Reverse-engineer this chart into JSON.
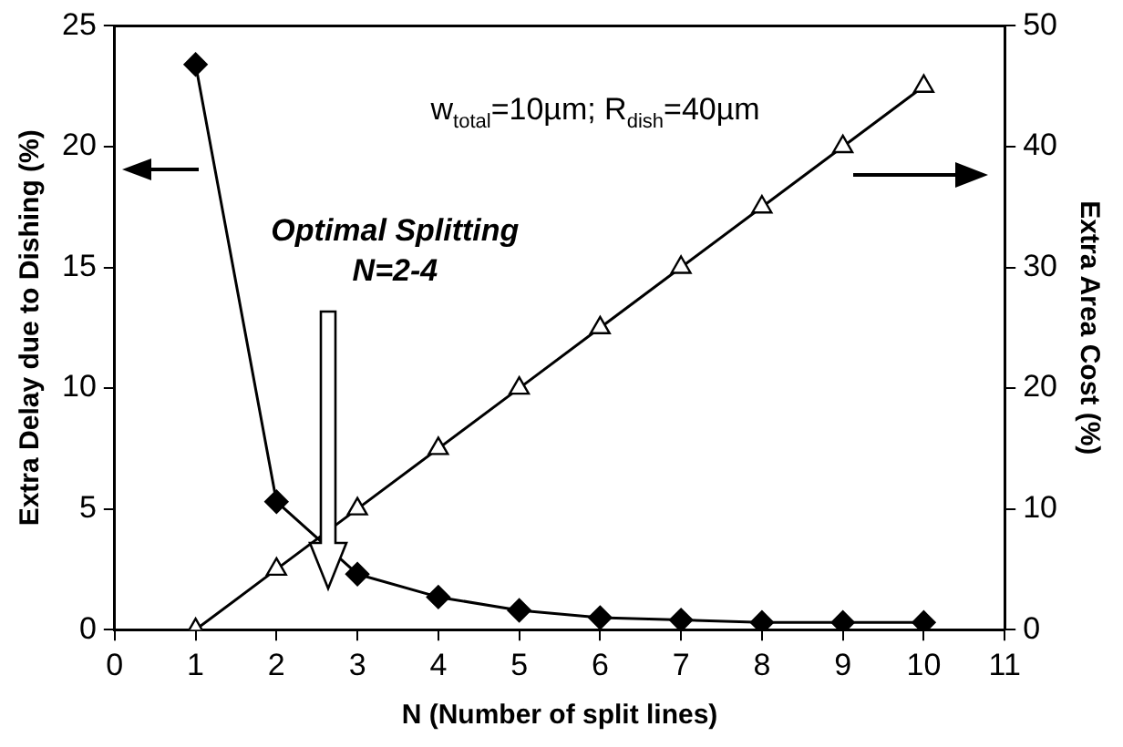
{
  "chart_data": {
    "type": "line",
    "xlabel": "N (Number of split lines)",
    "ylabel": "Extra Delay due to Dishing (%)",
    "y2label": "Extra Area Cost (%)",
    "x": [
      1,
      2,
      3,
      4,
      5,
      6,
      7,
      8,
      9,
      10
    ],
    "series": [
      {
        "color": "#000000",
        "marker": "diamond",
        "values": [
          23.4,
          5.3,
          2.3,
          1.35,
          0.8,
          0.5,
          0.4,
          0.3,
          0.3,
          0.3
        ]
      },
      {
        "color": "#000000",
        "marker": "triangle",
        "axis": "y2",
        "values": [
          0,
          5,
          10,
          15,
          20,
          25,
          30,
          35,
          40,
          45
        ]
      }
    ],
    "xlim": [
      0,
      11
    ],
    "xticks": [
      0,
      1,
      2,
      3,
      4,
      5,
      6,
      7,
      8,
      9,
      10,
      11
    ],
    "ylim": [
      0,
      25
    ],
    "yticks": [
      0,
      5,
      10,
      15,
      20,
      25
    ],
    "y2lim": [
      0,
      50
    ],
    "y2ticks": [
      0,
      10,
      20,
      30,
      40,
      50
    ],
    "annotations": [
      "w$_{total}$=10µm; R$_{dish}$=40µm",
      "Optimal Splitting\nN=2-4"
    ],
    "grid": false,
    "legend": false
  }
}
